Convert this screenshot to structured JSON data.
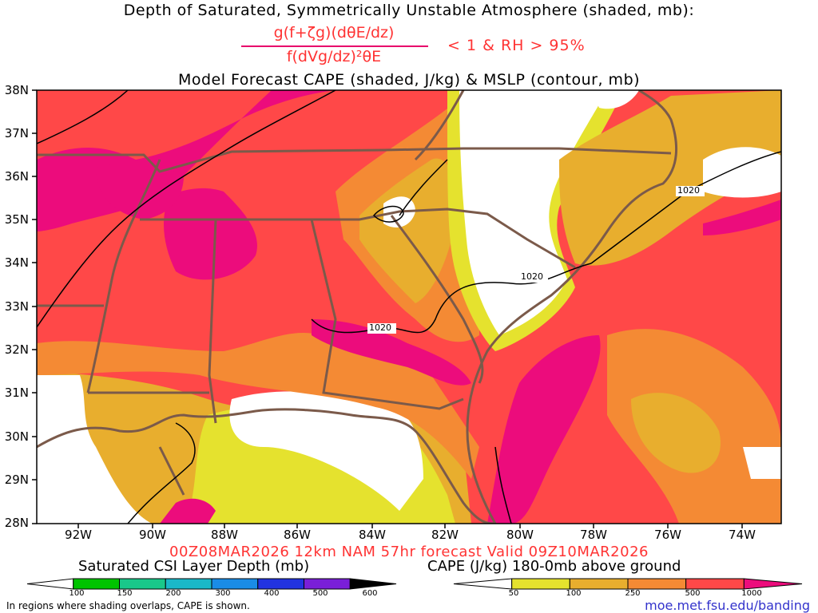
{
  "title": {
    "line1": "Depth of Saturated, Symmetrically Unstable Atmosphere (shaded, mb):",
    "formula_numerator": "g(f+ζg)(dθE/dz)",
    "formula_denominator": "f(dVg/dz)²θE",
    "formula_condition": "< 1 & RH > 95%",
    "line3": "Model Forecast CAPE (shaded, J/kg) & MSLP (contour, mb)"
  },
  "map": {
    "latitude_labels": [
      "38N",
      "37N",
      "36N",
      "35N",
      "34N",
      "33N",
      "32N",
      "31N",
      "30N",
      "29N",
      "28N"
    ],
    "longitude_labels": [
      "92W",
      "90W",
      "88W",
      "86W",
      "84W",
      "82W",
      "80W",
      "78W",
      "76W",
      "74W"
    ],
    "contour_labels": [
      "1020",
      "1020",
      "1020"
    ],
    "colors": {
      "cape_50": "#e5e22e",
      "cape_100": "#e8ae2e",
      "cape_250": "#f48a34",
      "cape_500": "#ff4848",
      "cape_1000": "#ec0c7c",
      "state_lines": "#7b5a4a",
      "isobars": "#000000"
    }
  },
  "valid_line": "00Z08MAR2026 12km NAM 57hr forecast Valid 09Z10MAR2026",
  "colorbar_csi": {
    "title": "Saturated CSI Layer Depth (mb)",
    "ticks": [
      "100",
      "150",
      "200",
      "300",
      "400",
      "500",
      "600"
    ],
    "colors": [
      "#00c400",
      "#19c88a",
      "#1ab8c8",
      "#1a8ce6",
      "#2233e0",
      "#7a1fd8",
      "#000000"
    ]
  },
  "colorbar_cape": {
    "title": "CAPE (J/kg) 180-0mb above ground",
    "ticks": [
      "50",
      "100",
      "250",
      "500",
      "1000"
    ],
    "colors": [
      "#e5e22e",
      "#e8ae2e",
      "#f48a34",
      "#ff4848",
      "#ec0c7c"
    ]
  },
  "footer": {
    "note": "In regions where shading overlaps, CAPE is shown.",
    "url": "moe.met.fsu.edu/banding"
  }
}
